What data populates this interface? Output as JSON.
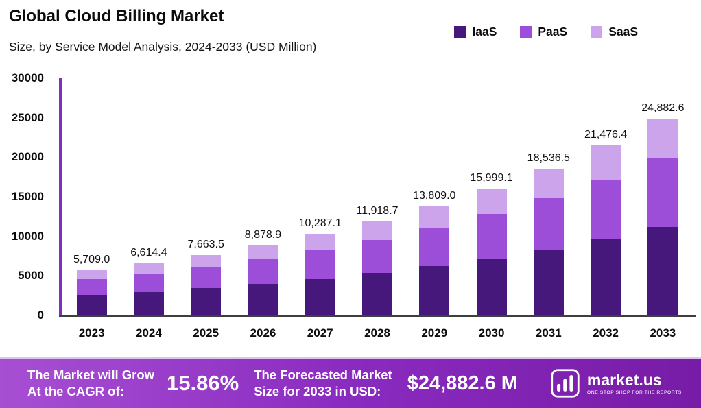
{
  "header": {
    "title": "Global Cloud Billing Market",
    "subtitle": "Size, by Service Model Analysis, 2024-2033 (USD Million)"
  },
  "legend": [
    {
      "label": "IaaS",
      "color": "#46187C"
    },
    {
      "label": "PaaS",
      "color": "#9C4ED8"
    },
    {
      "label": "SaaS",
      "color": "#CCA4EC"
    }
  ],
  "chart_data": {
    "type": "bar",
    "stacked": true,
    "title": "Global Cloud Billing Market",
    "subtitle": "Size, by Service Model Analysis, 2024-2033 (USD Million)",
    "xlabel": "",
    "ylabel": "USD Million",
    "ylim": [
      0,
      30000
    ],
    "yticks": [
      0,
      5000,
      10000,
      15000,
      20000,
      25000,
      30000
    ],
    "ytick_labels": [
      "0",
      "5000",
      "10000",
      "15000",
      "20000",
      "25000",
      "30000"
    ],
    "grid": false,
    "legend_position": "top-right",
    "categories": [
      "2023",
      "2024",
      "2025",
      "2026",
      "2027",
      "2028",
      "2029",
      "2030",
      "2031",
      "2032",
      "2033"
    ],
    "totals": [
      5709.0,
      6614.4,
      7663.5,
      8878.9,
      10287.1,
      11918.7,
      13809.0,
      15999.1,
      18536.5,
      21476.4,
      24882.6
    ],
    "total_labels": [
      "5,709.0",
      "6,614.4",
      "7,663.5",
      "8,878.9",
      "10,287.1",
      "11,918.7",
      "13,809.0",
      "15,999.1",
      "18,536.5",
      "21,476.4",
      "24,882.6"
    ],
    "series": [
      {
        "name": "IaaS",
        "color": "#46187C",
        "values": [
          2569.1,
          2976.5,
          3448.6,
          3995.5,
          4629.2,
          5363.4,
          6214.1,
          7199.6,
          8341.4,
          9664.4,
          11197.2
        ]
      },
      {
        "name": "PaaS",
        "color": "#9C4ED8",
        "values": [
          1998.2,
          2315.0,
          2682.2,
          3107.6,
          3600.5,
          4171.5,
          4833.2,
          5599.7,
          6487.8,
          7516.7,
          8708.9
        ]
      },
      {
        "name": "SaaS",
        "color": "#CCA4EC",
        "values": [
          1141.7,
          1322.9,
          1532.7,
          1775.8,
          2057.4,
          2383.8,
          2761.7,
          3199.8,
          3707.3,
          4295.3,
          4976.5
        ]
      }
    ]
  },
  "footer": {
    "cagr_line1": "The Market will Grow",
    "cagr_line2": "At the CAGR of:",
    "cagr_value": "15.86%",
    "forecast_line1": "The Forecasted Market",
    "forecast_line2": "Size for 2033 in USD:",
    "forecast_value": "$24,882.6 M",
    "brand": "market.us",
    "brand_tagline": "ONE STOP SHOP FOR THE REPORTS"
  },
  "colors": {
    "axis_y": "#7E2FC0",
    "axis_x": "#3f3f3f",
    "banner_start": "#A74FD3",
    "banner_end": "#771CA6"
  }
}
